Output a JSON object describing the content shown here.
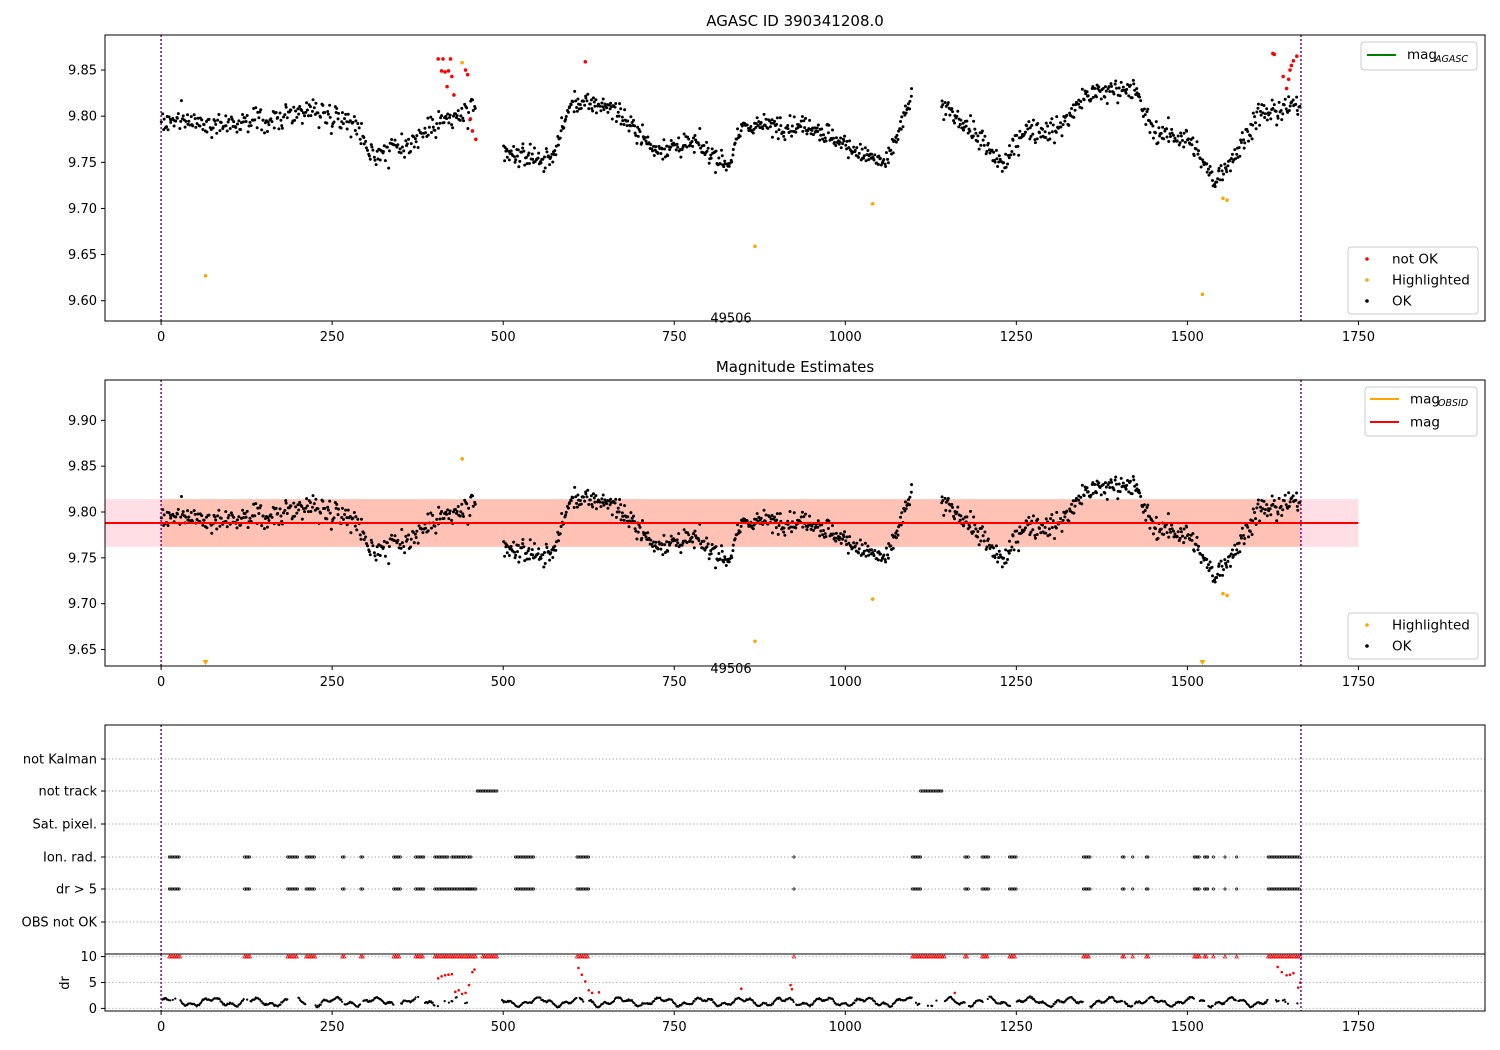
{
  "figure": {
    "title": "AGASC ID 390341208.0"
  },
  "colors": {
    "ok": "#000000",
    "not_ok": "#ff0000",
    "highlighted": "#ffa500",
    "mag_agasc": "#008000",
    "mag_obsid": "#ffa500",
    "mag": "#ff0000",
    "band_obs": "#ffa07a",
    "band_mag": "#ffc0cb",
    "vline": "#800080"
  },
  "chart_data": [
    {
      "type": "scatter",
      "title": "AGASC ID 390341208.0",
      "xlim": [
        -82,
        1935
      ],
      "ylim": [
        9.578,
        9.888
      ],
      "xticks": [
        0,
        250,
        500,
        750,
        1000,
        1250,
        1500,
        1750
      ],
      "yticks": [
        "9.60",
        "9.65",
        "9.70",
        "9.75",
        "9.80",
        "9.85"
      ],
      "vlines": [
        0,
        1666
      ],
      "obs_label": {
        "text": "49506",
        "x": 833,
        "y": 9.595
      },
      "legend_lines": [
        {
          "label": "mag",
          "sub": "AGASC",
          "color_key": "mag_agasc"
        }
      ],
      "legend_markers": [
        {
          "label": "not OK",
          "color_key": "not_ok"
        },
        {
          "label": "Highlighted",
          "color_key": "highlighted"
        },
        {
          "label": "OK",
          "color_key": "ok"
        }
      ],
      "highlighted_points": [
        [
          65,
          9.627
        ],
        [
          440,
          9.858
        ],
        [
          868,
          9.659
        ],
        [
          1040,
          9.705
        ],
        [
          1522,
          9.607
        ],
        [
          1552,
          9.711
        ],
        [
          1558,
          9.709
        ]
      ],
      "not_ok_points": [
        [
          405,
          9.862
        ],
        [
          410,
          9.849
        ],
        [
          412,
          9.862
        ],
        [
          415,
          9.848
        ],
        [
          418,
          9.832
        ],
        [
          420,
          9.849
        ],
        [
          423,
          9.862
        ],
        [
          425,
          9.843
        ],
        [
          428,
          9.823
        ],
        [
          445,
          9.85
        ],
        [
          448,
          9.845
        ],
        [
          452,
          9.797
        ],
        [
          455,
          9.784
        ],
        [
          460,
          9.775
        ],
        [
          620,
          9.859
        ],
        [
          1625,
          9.868
        ],
        [
          1627,
          9.867
        ],
        [
          1640,
          9.843
        ],
        [
          1645,
          9.83
        ],
        [
          1648,
          9.84
        ],
        [
          1650,
          9.85
        ],
        [
          1652,
          9.855
        ],
        [
          1655,
          9.86
        ],
        [
          1660,
          9.865
        ]
      ],
      "ok_segments": [
        {
          "x0": 0,
          "x1": 460,
          "n": 330,
          "noise": 0.014,
          "trend": [
            [
              0,
              9.795
            ],
            [
              120,
              9.793
            ],
            [
              160,
              9.795
            ],
            [
              220,
              9.808
            ],
            [
              280,
              9.795
            ],
            [
              310,
              9.758
            ],
            [
              360,
              9.77
            ],
            [
              400,
              9.792
            ],
            [
              460,
              9.805
            ]
          ]
        },
        {
          "x0": 500,
          "x1": 1098,
          "n": 500,
          "noise": 0.012,
          "trend": [
            [
              500,
              9.76
            ],
            [
              570,
              9.752
            ],
            [
              600,
              9.815
            ],
            [
              660,
              9.81
            ],
            [
              720,
              9.765
            ],
            [
              780,
              9.77
            ],
            [
              830,
              9.748
            ],
            [
              850,
              9.79
            ],
            [
              950,
              9.79
            ],
            [
              1030,
              9.757
            ],
            [
              1060,
              9.748
            ],
            [
              1098,
              9.822
            ]
          ]
        },
        {
          "x0": 1140,
          "x1": 1665,
          "n": 420,
          "noise": 0.013,
          "trend": [
            [
              1140,
              9.81
            ],
            [
              1180,
              9.79
            ],
            [
              1230,
              9.745
            ],
            [
              1260,
              9.785
            ],
            [
              1310,
              9.785
            ],
            [
              1350,
              9.822
            ],
            [
              1420,
              9.832
            ],
            [
              1450,
              9.785
            ],
            [
              1500,
              9.775
            ],
            [
              1540,
              9.73
            ],
            [
              1580,
              9.77
            ],
            [
              1600,
              9.8
            ],
            [
              1630,
              9.805
            ],
            [
              1665,
              9.812
            ]
          ]
        }
      ]
    },
    {
      "type": "scatter",
      "title": "Magnitude Estimates",
      "xlim": [
        -82,
        1935
      ],
      "ylim": [
        9.632,
        9.944
      ],
      "xticks": [
        0,
        250,
        500,
        750,
        1000,
        1250,
        1500,
        1750
      ],
      "yticks": [
        "9.65",
        "9.70",
        "9.75",
        "9.80",
        "9.85",
        "9.90"
      ],
      "vlines": [
        0,
        1666
      ],
      "obs_label": {
        "text": "49506",
        "x": 833,
        "y": 9.643
      },
      "mag_value": 9.788,
      "band_mag": [
        9.762,
        9.814,
        -82,
        1750
      ],
      "band_obs": [
        9.762,
        9.814,
        0,
        1666
      ],
      "legend_lines": [
        {
          "label": "mag",
          "sub": "OBSID",
          "color_key": "mag_obsid"
        },
        {
          "label": "mag",
          "sub": "",
          "color_key": "mag"
        }
      ],
      "legend_markers": [
        {
          "label": "Highlighted",
          "color_key": "highlighted"
        },
        {
          "label": "OK",
          "color_key": "ok"
        }
      ],
      "highlighted_points": [
        [
          440,
          9.858
        ],
        [
          868,
          9.659
        ],
        [
          1040,
          9.705
        ],
        [
          1552,
          9.711
        ],
        [
          1558,
          9.709
        ]
      ],
      "offscale_points": [
        65,
        1522
      ],
      "ok_segments": [
        {
          "x0": 0,
          "x1": 460,
          "n": 330,
          "noise": 0.014,
          "trend": [
            [
              0,
              9.795
            ],
            [
              120,
              9.793
            ],
            [
              160,
              9.795
            ],
            [
              220,
              9.808
            ],
            [
              280,
              9.795
            ],
            [
              310,
              9.758
            ],
            [
              360,
              9.77
            ],
            [
              400,
              9.792
            ],
            [
              460,
              9.805
            ]
          ]
        },
        {
          "x0": 500,
          "x1": 1098,
          "n": 500,
          "noise": 0.012,
          "trend": [
            [
              500,
              9.76
            ],
            [
              570,
              9.752
            ],
            [
              600,
              9.815
            ],
            [
              660,
              9.81
            ],
            [
              720,
              9.765
            ],
            [
              780,
              9.77
            ],
            [
              830,
              9.748
            ],
            [
              850,
              9.79
            ],
            [
              950,
              9.79
            ],
            [
              1030,
              9.757
            ],
            [
              1060,
              9.748
            ],
            [
              1098,
              9.822
            ]
          ]
        },
        {
          "x0": 1140,
          "x1": 1665,
          "n": 420,
          "noise": 0.013,
          "trend": [
            [
              1140,
              9.81
            ],
            [
              1180,
              9.79
            ],
            [
              1230,
              9.745
            ],
            [
              1260,
              9.785
            ],
            [
              1310,
              9.785
            ],
            [
              1350,
              9.822
            ],
            [
              1420,
              9.832
            ],
            [
              1450,
              9.785
            ],
            [
              1500,
              9.775
            ],
            [
              1540,
              9.73
            ],
            [
              1580,
              9.77
            ],
            [
              1600,
              9.8
            ],
            [
              1630,
              9.805
            ],
            [
              1665,
              9.812
            ]
          ]
        }
      ]
    },
    {
      "type": "scatter",
      "title": "",
      "xlim": [
        -82,
        1935
      ],
      "categories": [
        "not Kalman",
        "not track",
        "Sat. pixel.",
        "Ion. rad.",
        "dr > 5",
        "OBS not OK"
      ],
      "vlines": [
        0,
        1666
      ],
      "flags": {
        "not track": [
          [
            462,
            492
          ],
          [
            1110,
            1142
          ]
        ],
        "Ion. rad.": [
          [
            12,
            28
          ],
          [
            122,
            130
          ],
          [
            185,
            200
          ],
          [
            212,
            225
          ],
          [
            265,
            268
          ],
          [
            292,
            296
          ],
          [
            340,
            350
          ],
          [
            372,
            385
          ],
          [
            400,
            420
          ],
          [
            425,
            445
          ],
          [
            448,
            455
          ],
          [
            518,
            545
          ],
          [
            608,
            625
          ],
          [
            925,
            927
          ],
          [
            1098,
            1112
          ],
          [
            1175,
            1180
          ],
          [
            1200,
            1210
          ],
          [
            1240,
            1250
          ],
          [
            1348,
            1358
          ],
          [
            1405,
            1408
          ],
          [
            1420,
            1422
          ],
          [
            1440,
            1443
          ],
          [
            1510,
            1518
          ],
          [
            1525,
            1530
          ],
          [
            1538,
            1540
          ],
          [
            1555,
            1557
          ],
          [
            1572,
            1574
          ],
          [
            1618,
            1665
          ]
        ],
        "dr > 5": [
          [
            12,
            28
          ],
          [
            122,
            130
          ],
          [
            185,
            200
          ],
          [
            212,
            225
          ],
          [
            265,
            268
          ],
          [
            292,
            296
          ],
          [
            340,
            350
          ],
          [
            372,
            385
          ],
          [
            400,
            455
          ],
          [
            448,
            462
          ],
          [
            518,
            545
          ],
          [
            608,
            625
          ],
          [
            925,
            927
          ],
          [
            1098,
            1112
          ],
          [
            1175,
            1180
          ],
          [
            1200,
            1210
          ],
          [
            1240,
            1250
          ],
          [
            1348,
            1358
          ],
          [
            1405,
            1408
          ],
          [
            1420,
            1422
          ],
          [
            1440,
            1443
          ],
          [
            1510,
            1518
          ],
          [
            1525,
            1530
          ],
          [
            1538,
            1540
          ],
          [
            1555,
            1557
          ],
          [
            1572,
            1574
          ],
          [
            1618,
            1665
          ]
        ]
      }
    },
    {
      "type": "scatter",
      "title": "",
      "ylabel": "dr",
      "xlim": [
        -82,
        1935
      ],
      "ylim": [
        -0.5,
        10.5
      ],
      "xticks": [
        0,
        250,
        500,
        750,
        1000,
        1250,
        1500,
        1750
      ],
      "yticks": [
        "0",
        "5",
        "10"
      ],
      "vlines": [
        0,
        1666
      ],
      "capped_ranges": [
        [
          12,
          28
        ],
        [
          122,
          130
        ],
        [
          185,
          200
        ],
        [
          212,
          225
        ],
        [
          265,
          268
        ],
        [
          292,
          296
        ],
        [
          340,
          350
        ],
        [
          372,
          385
        ],
        [
          400,
          462
        ],
        [
          470,
          492
        ],
        [
          608,
          625
        ],
        [
          925,
          927
        ],
        [
          1098,
          1145
        ],
        [
          1175,
          1180
        ],
        [
          1200,
          1210
        ],
        [
          1240,
          1250
        ],
        [
          1348,
          1358
        ],
        [
          1405,
          1408
        ],
        [
          1420,
          1422
        ],
        [
          1440,
          1443
        ],
        [
          1510,
          1518
        ],
        [
          1525,
          1530
        ],
        [
          1538,
          1540
        ],
        [
          1555,
          1557
        ],
        [
          1572,
          1574
        ],
        [
          1618,
          1665
        ]
      ],
      "red_points": [
        [
          405,
          5.8
        ],
        [
          410,
          6.2
        ],
        [
          415,
          6.4
        ],
        [
          420,
          6.5
        ],
        [
          425,
          6.6
        ],
        [
          430,
          3.2
        ],
        [
          435,
          3.5
        ],
        [
          440,
          2.8
        ],
        [
          445,
          3.0
        ],
        [
          450,
          4.5
        ],
        [
          455,
          7.0
        ],
        [
          458,
          7.5
        ],
        [
          610,
          7.8
        ],
        [
          615,
          6.5
        ],
        [
          620,
          5.2
        ],
        [
          625,
          3.5
        ],
        [
          630,
          3.0
        ],
        [
          640,
          3.1
        ],
        [
          848,
          3.8
        ],
        [
          920,
          4.5
        ],
        [
          922,
          3.7
        ],
        [
          1160,
          3.0
        ],
        [
          1632,
          8.0
        ],
        [
          1638,
          7.0
        ],
        [
          1645,
          6.4
        ],
        [
          1650,
          6.5
        ],
        [
          1655,
          6.8
        ],
        [
          1662,
          4.0
        ],
        [
          1665,
          5.0
        ]
      ]
    }
  ]
}
